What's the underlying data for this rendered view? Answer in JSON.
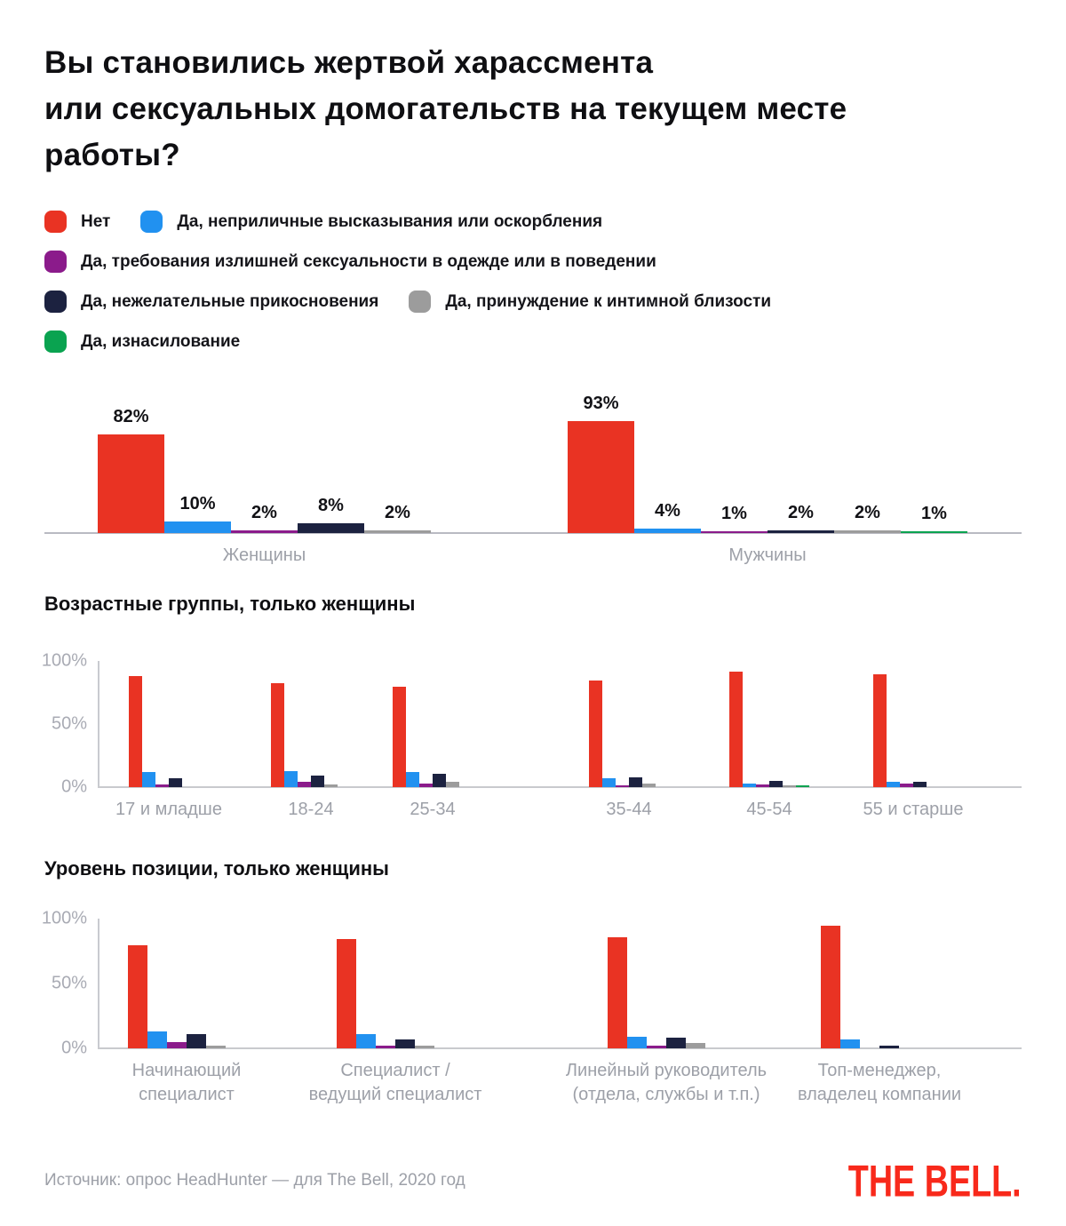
{
  "title_lines": [
    "Вы становились жертвой харассмента",
    "или сексуальных домогательств на текущем месте",
    "работы?"
  ],
  "colors": {
    "no": "#e93323",
    "remarks": "#2191f0",
    "dress": "#8b1b8b",
    "touch": "#1c2240",
    "coercion": "#9c9c9c",
    "rape": "#0aa350",
    "axis_line": "#b9bac2",
    "tick_text": "#a9abb4",
    "category_text": "#9da0a8",
    "logo_red": "#f8291b"
  },
  "legend": {
    "rows": [
      [
        {
          "key": "no",
          "label": "Нет"
        },
        {
          "key": "remarks",
          "label": "Да, неприличные высказывания или оскорбления"
        }
      ],
      [
        {
          "key": "dress",
          "label": "Да, требования излишней сексуальности в одежде или в поведении"
        }
      ],
      [
        {
          "key": "touch",
          "label": "Да, нежелательные прикосновения"
        },
        {
          "key": "coercion",
          "label": "Да, принуждение к интимной близости"
        }
      ],
      [
        {
          "key": "rape",
          "label": "Да, изнасилование"
        }
      ]
    ]
  },
  "chart_data": [
    {
      "type": "bar",
      "name": "by-gender",
      "categories": [
        "Женщины",
        "Мужчины"
      ],
      "series": [
        {
          "key": "no",
          "name": "Нет",
          "values": [
            82,
            93
          ]
        },
        {
          "key": "remarks",
          "name": "Да, неприличные высказывания или оскорбления",
          "values": [
            10,
            4
          ]
        },
        {
          "key": "dress",
          "name": "Да, требования излишней сексуальности в одежде или в поведении",
          "values": [
            2,
            1
          ]
        },
        {
          "key": "touch",
          "name": "Да, нежелательные прикосновения",
          "values": [
            8,
            2
          ]
        },
        {
          "key": "coercion",
          "name": "Да, принуждение к интимной близости",
          "values": [
            2,
            2
          ]
        },
        {
          "key": "rape",
          "name": "Да, изнасилование",
          "values": [
            null,
            1
          ]
        }
      ],
      "data_labels": true,
      "unit": "%",
      "ylim": [
        0,
        100
      ],
      "legend_position": "top",
      "grid": false
    },
    {
      "type": "bar",
      "name": "by-age",
      "title": "Возрастные группы, только женщины",
      "categories": [
        "17 и младше",
        "18-24",
        "25-34",
        "35-44",
        "45-54",
        "55 и старше"
      ],
      "series": [
        {
          "key": "no",
          "name": "Нет",
          "values": [
            89,
            83,
            80,
            85,
            92,
            90
          ]
        },
        {
          "key": "remarks",
          "name": "Да, неприличные высказывания или оскорбления",
          "values": [
            12,
            13,
            12,
            7,
            3,
            4
          ]
        },
        {
          "key": "dress",
          "name": "Да, требования излишней сексуальности в одежде или в поведении",
          "values": [
            2,
            4,
            3,
            1,
            2,
            3
          ]
        },
        {
          "key": "touch",
          "name": "Да, нежелательные прикосновения",
          "values": [
            7,
            9,
            11,
            8,
            5,
            4
          ]
        },
        {
          "key": "coercion",
          "name": "Да, принуждение к интимной близости",
          "values": [
            null,
            2,
            4,
            3,
            1,
            null
          ]
        },
        {
          "key": "rape",
          "name": "Да, изнасилование",
          "values": [
            null,
            null,
            null,
            null,
            1,
            null
          ]
        }
      ],
      "yticks": [
        "0%",
        "50%",
        "100%"
      ],
      "unit": "%",
      "ylim": [
        0,
        100
      ],
      "grid": false
    },
    {
      "type": "bar",
      "name": "by-position",
      "title": "Уровень позиции, только женщины",
      "categories": [
        [
          "Начинающий",
          "специалист"
        ],
        [
          "Специалист /",
          "ведущий специалист"
        ],
        [
          "Линейный руководитель",
          "(отдела, службы и т.п.)"
        ],
        [
          "Топ-менеджер,",
          "владелец компании"
        ]
      ],
      "series": [
        {
          "key": "no",
          "name": "Нет",
          "values": [
            80,
            85,
            86,
            95
          ]
        },
        {
          "key": "remarks",
          "name": "Да, неприличные высказывания или оскорбления",
          "values": [
            13,
            11,
            9,
            7
          ]
        },
        {
          "key": "dress",
          "name": "Да, требования излишней сексуальности в одежде или в поведении",
          "values": [
            5,
            2,
            2,
            null
          ]
        },
        {
          "key": "touch",
          "name": "Да, нежелательные прикосновения",
          "values": [
            11,
            7,
            8,
            2
          ]
        },
        {
          "key": "coercion",
          "name": "Да, принуждение к интимной близости",
          "values": [
            2,
            2,
            4,
            null
          ]
        },
        {
          "key": "rape",
          "name": "Да, изнасилование",
          "values": [
            null,
            null,
            null,
            null
          ]
        }
      ],
      "yticks": [
        "0%",
        "50%",
        "100%"
      ],
      "unit": "%",
      "ylim": [
        0,
        100
      ],
      "grid": false
    }
  ],
  "footer": {
    "source": "Источник: опрос HeadHunter — для The Bell, 2020 год",
    "logo": "THE BELL."
  }
}
